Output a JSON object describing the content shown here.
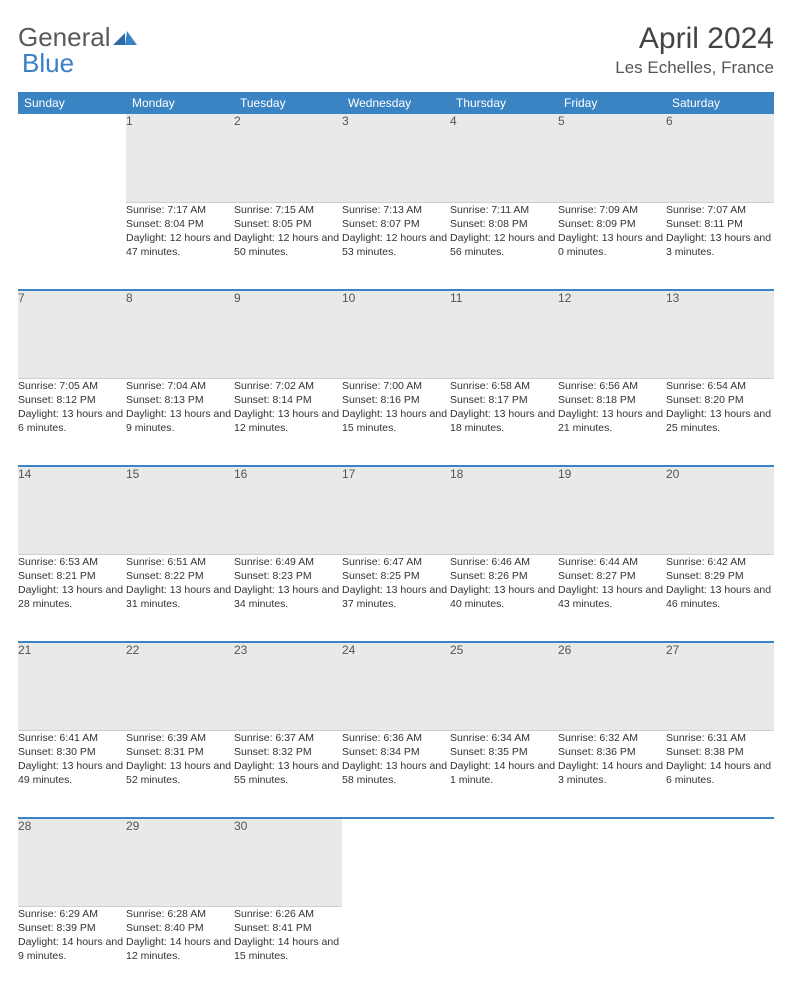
{
  "logo": {
    "text1": "General",
    "text2": "Blue"
  },
  "title": "April 2024",
  "location": "Les Echelles, France",
  "colors": {
    "header_bg": "#3b84c4",
    "header_fg": "#ffffff",
    "daynum_bg": "#e9e9e9",
    "row_divider": "#3b84c4",
    "logo_gray": "#5a5a5a",
    "logo_blue": "#3b7fc4"
  },
  "weekdays": [
    "Sunday",
    "Monday",
    "Tuesday",
    "Wednesday",
    "Thursday",
    "Friday",
    "Saturday"
  ],
  "weeks": [
    [
      null,
      {
        "n": "1",
        "sr": "7:17 AM",
        "ss": "8:04 PM",
        "dl": "12 hours and 47 minutes."
      },
      {
        "n": "2",
        "sr": "7:15 AM",
        "ss": "8:05 PM",
        "dl": "12 hours and 50 minutes."
      },
      {
        "n": "3",
        "sr": "7:13 AM",
        "ss": "8:07 PM",
        "dl": "12 hours and 53 minutes."
      },
      {
        "n": "4",
        "sr": "7:11 AM",
        "ss": "8:08 PM",
        "dl": "12 hours and 56 minutes."
      },
      {
        "n": "5",
        "sr": "7:09 AM",
        "ss": "8:09 PM",
        "dl": "13 hours and 0 minutes."
      },
      {
        "n": "6",
        "sr": "7:07 AM",
        "ss": "8:11 PM",
        "dl": "13 hours and 3 minutes."
      }
    ],
    [
      {
        "n": "7",
        "sr": "7:05 AM",
        "ss": "8:12 PM",
        "dl": "13 hours and 6 minutes."
      },
      {
        "n": "8",
        "sr": "7:04 AM",
        "ss": "8:13 PM",
        "dl": "13 hours and 9 minutes."
      },
      {
        "n": "9",
        "sr": "7:02 AM",
        "ss": "8:14 PM",
        "dl": "13 hours and 12 minutes."
      },
      {
        "n": "10",
        "sr": "7:00 AM",
        "ss": "8:16 PM",
        "dl": "13 hours and 15 minutes."
      },
      {
        "n": "11",
        "sr": "6:58 AM",
        "ss": "8:17 PM",
        "dl": "13 hours and 18 minutes."
      },
      {
        "n": "12",
        "sr": "6:56 AM",
        "ss": "8:18 PM",
        "dl": "13 hours and 21 minutes."
      },
      {
        "n": "13",
        "sr": "6:54 AM",
        "ss": "8:20 PM",
        "dl": "13 hours and 25 minutes."
      }
    ],
    [
      {
        "n": "14",
        "sr": "6:53 AM",
        "ss": "8:21 PM",
        "dl": "13 hours and 28 minutes."
      },
      {
        "n": "15",
        "sr": "6:51 AM",
        "ss": "8:22 PM",
        "dl": "13 hours and 31 minutes."
      },
      {
        "n": "16",
        "sr": "6:49 AM",
        "ss": "8:23 PM",
        "dl": "13 hours and 34 minutes."
      },
      {
        "n": "17",
        "sr": "6:47 AM",
        "ss": "8:25 PM",
        "dl": "13 hours and 37 minutes."
      },
      {
        "n": "18",
        "sr": "6:46 AM",
        "ss": "8:26 PM",
        "dl": "13 hours and 40 minutes."
      },
      {
        "n": "19",
        "sr": "6:44 AM",
        "ss": "8:27 PM",
        "dl": "13 hours and 43 minutes."
      },
      {
        "n": "20",
        "sr": "6:42 AM",
        "ss": "8:29 PM",
        "dl": "13 hours and 46 minutes."
      }
    ],
    [
      {
        "n": "21",
        "sr": "6:41 AM",
        "ss": "8:30 PM",
        "dl": "13 hours and 49 minutes."
      },
      {
        "n": "22",
        "sr": "6:39 AM",
        "ss": "8:31 PM",
        "dl": "13 hours and 52 minutes."
      },
      {
        "n": "23",
        "sr": "6:37 AM",
        "ss": "8:32 PM",
        "dl": "13 hours and 55 minutes."
      },
      {
        "n": "24",
        "sr": "6:36 AM",
        "ss": "8:34 PM",
        "dl": "13 hours and 58 minutes."
      },
      {
        "n": "25",
        "sr": "6:34 AM",
        "ss": "8:35 PM",
        "dl": "14 hours and 1 minute."
      },
      {
        "n": "26",
        "sr": "6:32 AM",
        "ss": "8:36 PM",
        "dl": "14 hours and 3 minutes."
      },
      {
        "n": "27",
        "sr": "6:31 AM",
        "ss": "8:38 PM",
        "dl": "14 hours and 6 minutes."
      }
    ],
    [
      {
        "n": "28",
        "sr": "6:29 AM",
        "ss": "8:39 PM",
        "dl": "14 hours and 9 minutes."
      },
      {
        "n": "29",
        "sr": "6:28 AM",
        "ss": "8:40 PM",
        "dl": "14 hours and 12 minutes."
      },
      {
        "n": "30",
        "sr": "6:26 AM",
        "ss": "8:41 PM",
        "dl": "14 hours and 15 minutes."
      },
      null,
      null,
      null,
      null
    ]
  ],
  "labels": {
    "sunrise": "Sunrise:",
    "sunset": "Sunset:",
    "daylight": "Daylight:"
  }
}
